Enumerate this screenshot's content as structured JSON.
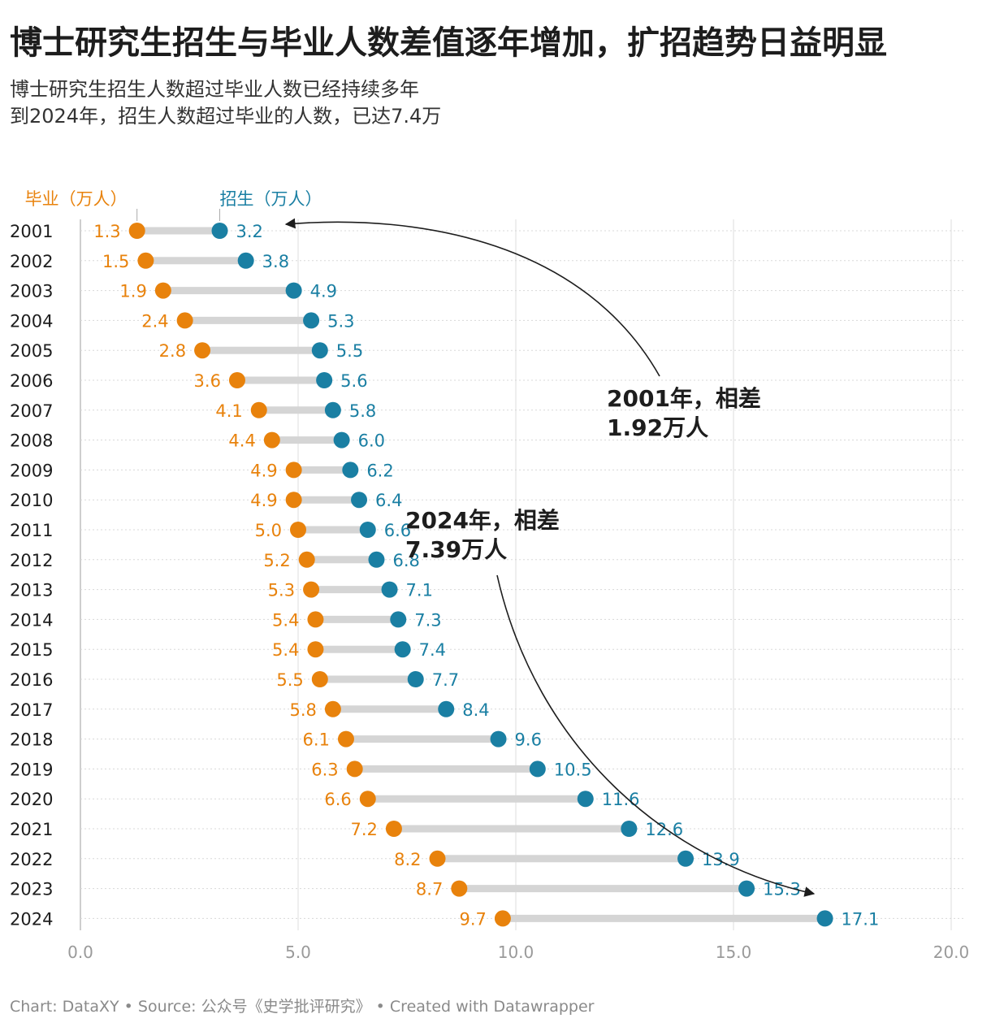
{
  "title": "博士研究生招生与毕业人数差值逐年增加，扩招趋势日益明显",
  "subtitle_lines": [
    "博士研究生招生人数超过毕业人数已经持续多年",
    "到2024年，招生人数超过毕业的人数，已达7.4万"
  ],
  "footer": "Chart: DataXY • Source: 公众号《史学批评研究》 • Created with Datawrapper",
  "colors": {
    "graduates": "#e8820c",
    "enrollment": "#1a7fa3",
    "connector": "#d5d5d5",
    "annotation": "#1d1d1d"
  },
  "chart_data": {
    "type": "dumbbell",
    "years": [
      "2001",
      "2002",
      "2003",
      "2004",
      "2005",
      "2006",
      "2007",
      "2008",
      "2009",
      "2010",
      "2011",
      "2012",
      "2013",
      "2014",
      "2015",
      "2016",
      "2017",
      "2018",
      "2019",
      "2020",
      "2021",
      "2022",
      "2023",
      "2024"
    ],
    "series": [
      {
        "name": "毕业（万人）",
        "values": [
          1.3,
          1.5,
          1.9,
          2.4,
          2.8,
          3.6,
          4.1,
          4.4,
          4.9,
          4.9,
          5.0,
          5.2,
          5.3,
          5.4,
          5.4,
          5.5,
          5.8,
          6.1,
          6.3,
          6.6,
          7.2,
          8.2,
          8.7,
          9.7
        ]
      },
      {
        "name": "招生（万人）",
        "values": [
          3.2,
          3.8,
          4.9,
          5.3,
          5.5,
          5.6,
          5.8,
          6.0,
          6.2,
          6.4,
          6.6,
          6.8,
          7.1,
          7.3,
          7.4,
          7.7,
          8.4,
          9.6,
          10.5,
          11.6,
          12.6,
          13.9,
          15.3,
          17.1
        ]
      }
    ],
    "xlim": [
      0,
      20
    ],
    "xticks": [
      "0.0",
      "5.0",
      "10.0",
      "15.0",
      "20.0"
    ],
    "annotations": [
      {
        "lines": [
          "2001年，相差",
          "1.92万人"
        ]
      },
      {
        "lines": [
          "2024年，相差",
          "7.39万人"
        ]
      }
    ]
  }
}
